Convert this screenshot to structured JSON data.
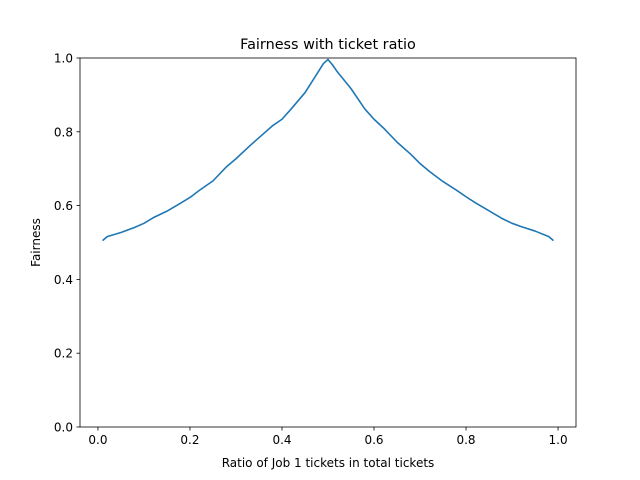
{
  "chart_data": {
    "type": "line",
    "title": "Fairness with ticket ratio",
    "xlabel": "Ratio of Job 1 tickets in total tickets",
    "ylabel": "Fairness",
    "xlim": [
      -0.039,
      1.039
    ],
    "ylim": [
      0.0,
      1.0
    ],
    "xticks": [
      0.0,
      0.2,
      0.4,
      0.6,
      0.8,
      1.0
    ],
    "xtick_labels": [
      "0.0",
      "0.2",
      "0.4",
      "0.6",
      "0.8",
      "1.0"
    ],
    "yticks": [
      0.0,
      0.2,
      0.4,
      0.6,
      0.8,
      1.0
    ],
    "ytick_labels": [
      "0.0",
      "0.2",
      "0.4",
      "0.6",
      "0.8",
      "1.0"
    ],
    "grid": false,
    "series": [
      {
        "color": "#1f77b4",
        "x": [
          0.01,
          0.02,
          0.05,
          0.08,
          0.1,
          0.12,
          0.15,
          0.18,
          0.2,
          0.22,
          0.25,
          0.28,
          0.3,
          0.33,
          0.35,
          0.38,
          0.4,
          0.42,
          0.45,
          0.48,
          0.49,
          0.5,
          0.51,
          0.52,
          0.55,
          0.58,
          0.6,
          0.62,
          0.65,
          0.68,
          0.7,
          0.72,
          0.75,
          0.78,
          0.8,
          0.82,
          0.85,
          0.88,
          0.9,
          0.92,
          0.95,
          0.98,
          0.99
        ],
        "y": [
          0.505,
          0.516,
          0.527,
          0.541,
          0.552,
          0.567,
          0.585,
          0.607,
          0.622,
          0.641,
          0.667,
          0.706,
          0.727,
          0.762,
          0.784,
          0.817,
          0.834,
          0.862,
          0.906,
          0.965,
          0.985,
          0.996,
          0.981,
          0.963,
          0.917,
          0.862,
          0.834,
          0.811,
          0.772,
          0.739,
          0.714,
          0.693,
          0.665,
          0.641,
          0.624,
          0.608,
          0.586,
          0.564,
          0.552,
          0.543,
          0.531,
          0.516,
          0.505
        ]
      }
    ]
  }
}
